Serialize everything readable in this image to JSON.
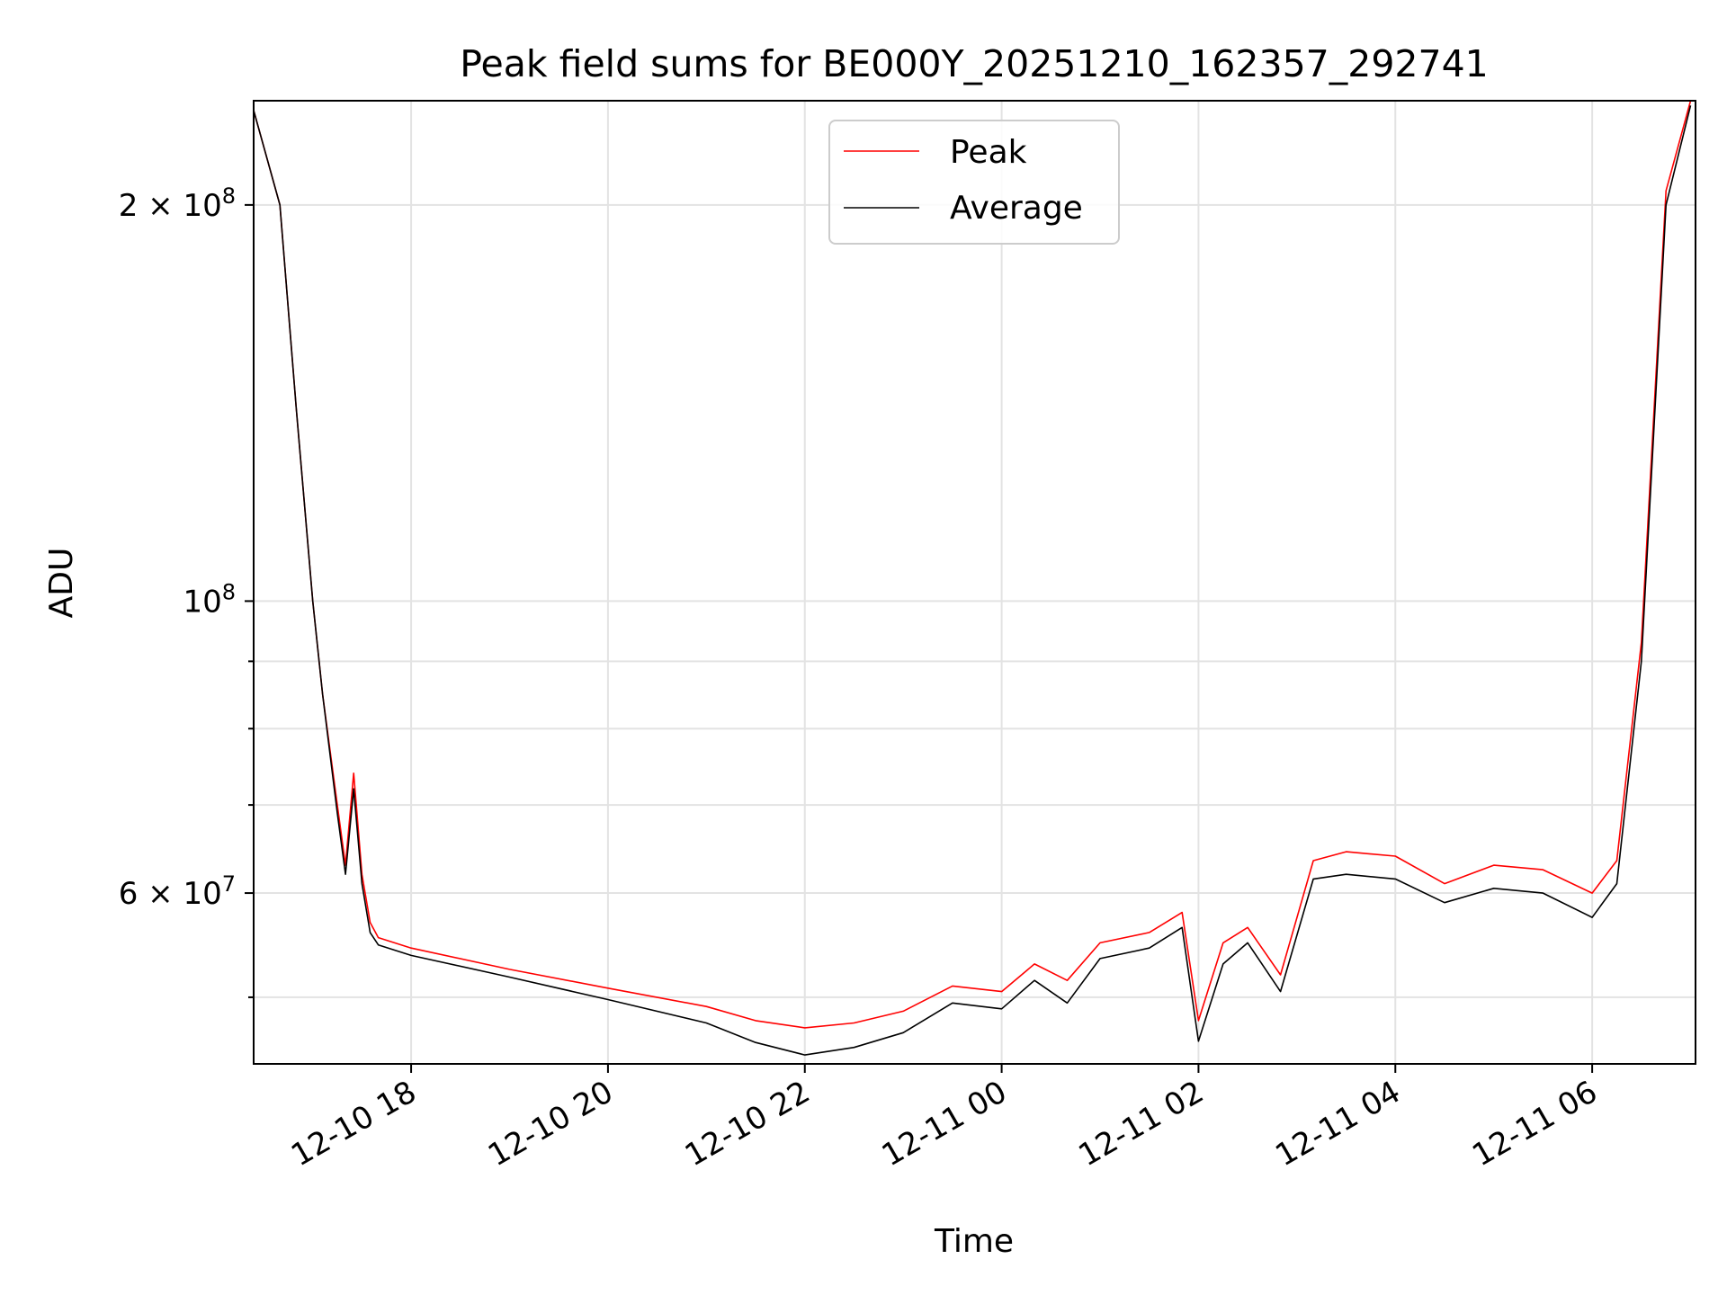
{
  "chart_data": {
    "type": "line",
    "title": "Peak field sums for BE000Y_20251210_162357_292741",
    "xlabel": "Time",
    "ylabel": "ADU",
    "y_scale": "log",
    "ylim": [
      44500000,
      240000000
    ],
    "xlim": [
      "2025-12-10 16:24",
      "2025-12-11 07:03"
    ],
    "grid": true,
    "legend_position": "top-center",
    "x_ticks": [
      {
        "value": "2025-12-10 18:00",
        "label": "12-10 18"
      },
      {
        "value": "2025-12-10 20:00",
        "label": "12-10 20"
      },
      {
        "value": "2025-12-10 22:00",
        "label": "12-10 22"
      },
      {
        "value": "2025-12-11 00:00",
        "label": "12-11 00"
      },
      {
        "value": "2025-12-11 02:00",
        "label": "12-11 02"
      },
      {
        "value": "2025-12-11 04:00",
        "label": "12-11 04"
      },
      {
        "value": "2025-12-11 06:00",
        "label": "12-11 06"
      }
    ],
    "y_ticks": [
      {
        "value": 200000000,
        "base": "2",
        "exp": "8",
        "label": "2 × 10^8"
      },
      {
        "value": 100000000,
        "base": "",
        "exp": "8",
        "label": "10^8"
      },
      {
        "value": 60000000,
        "base": "6",
        "exp": "7",
        "label": "6 × 10^7"
      }
    ],
    "y_minor_grid": [
      50000000,
      70000000,
      80000000,
      90000000
    ],
    "series": [
      {
        "name": "Peak",
        "color": "#ff0000",
        "x": [
          "2025-12-10 16:24",
          "2025-12-10 16:40",
          "2025-12-10 16:50",
          "2025-12-10 17:00",
          "2025-12-10 17:06",
          "2025-12-10 17:15",
          "2025-12-10 17:20",
          "2025-12-10 17:25",
          "2025-12-10 17:30",
          "2025-12-10 17:35",
          "2025-12-10 17:40",
          "2025-12-10 18:00",
          "2025-12-10 19:00",
          "2025-12-10 20:00",
          "2025-12-10 21:00",
          "2025-12-10 21:30",
          "2025-12-10 22:00",
          "2025-12-10 22:30",
          "2025-12-10 23:00",
          "2025-12-10 23:30",
          "2025-12-11 00:00",
          "2025-12-11 00:20",
          "2025-12-11 00:40",
          "2025-12-11 01:00",
          "2025-12-11 01:30",
          "2025-12-11 01:50",
          "2025-12-11 02:00",
          "2025-12-11 02:15",
          "2025-12-11 02:30",
          "2025-12-11 02:50",
          "2025-12-11 03:10",
          "2025-12-11 03:30",
          "2025-12-11 04:00",
          "2025-12-11 04:30",
          "2025-12-11 05:00",
          "2025-12-11 05:30",
          "2025-12-11 06:00",
          "2025-12-11 06:15",
          "2025-12-11 06:30",
          "2025-12-11 06:45",
          "2025-12-11 07:00"
        ],
        "values": [
          236000000,
          200000000,
          140000000,
          100000000,
          85000000,
          70000000,
          63000000,
          74000000,
          62000000,
          57000000,
          55500000,
          54500000,
          52500000,
          50800000,
          49200000,
          48000000,
          47400000,
          47800000,
          48800000,
          51000000,
          50500000,
          53000000,
          51500000,
          55000000,
          56000000,
          58000000,
          48000000,
          55000000,
          56500000,
          52000000,
          63500000,
          64500000,
          64000000,
          61000000,
          63000000,
          62500000,
          60000000,
          63500000,
          93000000,
          205000000,
          240000000
        ]
      },
      {
        "name": "Average",
        "color": "#000000",
        "x": [
          "2025-12-10 16:24",
          "2025-12-10 16:40",
          "2025-12-10 16:50",
          "2025-12-10 17:00",
          "2025-12-10 17:06",
          "2025-12-10 17:15",
          "2025-12-10 17:20",
          "2025-12-10 17:25",
          "2025-12-10 17:30",
          "2025-12-10 17:35",
          "2025-12-10 17:40",
          "2025-12-10 18:00",
          "2025-12-10 19:00",
          "2025-12-10 20:00",
          "2025-12-10 21:00",
          "2025-12-10 21:30",
          "2025-12-10 22:00",
          "2025-12-10 22:30",
          "2025-12-10 23:00",
          "2025-12-10 23:30",
          "2025-12-11 00:00",
          "2025-12-11 00:20",
          "2025-12-11 00:40",
          "2025-12-11 01:00",
          "2025-12-11 01:30",
          "2025-12-11 01:50",
          "2025-12-11 02:00",
          "2025-12-11 02:15",
          "2025-12-11 02:30",
          "2025-12-11 02:50",
          "2025-12-11 03:10",
          "2025-12-11 03:30",
          "2025-12-11 04:00",
          "2025-12-11 04:30",
          "2025-12-11 05:00",
          "2025-12-11 05:30",
          "2025-12-11 06:00",
          "2025-12-11 06:15",
          "2025-12-11 06:30",
          "2025-12-11 06:45",
          "2025-12-11 07:00"
        ],
        "values": [
          236000000,
          200000000,
          140000000,
          100000000,
          85000000,
          69000000,
          62000000,
          72000000,
          61000000,
          56000000,
          54800000,
          53800000,
          51800000,
          49800000,
          47800000,
          46200000,
          45200000,
          45800000,
          47000000,
          49500000,
          49000000,
          51500000,
          49500000,
          53500000,
          54500000,
          56500000,
          46300000,
          53000000,
          55000000,
          50500000,
          61500000,
          62000000,
          61500000,
          59000000,
          60500000,
          60000000,
          57500000,
          61000000,
          90000000,
          200000000,
          238000000
        ]
      }
    ]
  }
}
